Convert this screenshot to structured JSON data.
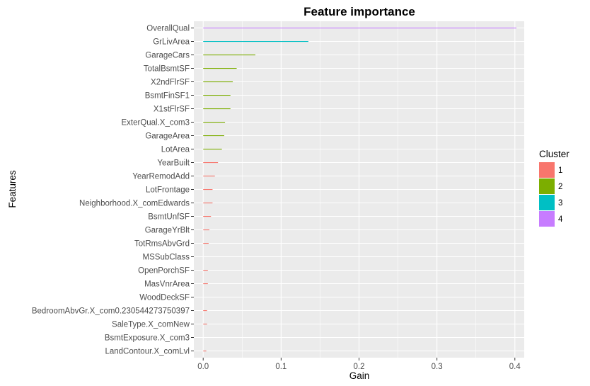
{
  "chart_data": {
    "type": "bar",
    "orientation": "horizontal",
    "title": "Feature importance",
    "xlabel": "Gain",
    "ylabel": "Features",
    "xlim": [
      -0.012,
      0.412
    ],
    "xticks": [
      "0.0",
      "0.1",
      "0.2",
      "0.3",
      "0.4"
    ],
    "xtick_values": [
      0.0,
      0.1,
      0.2,
      0.3,
      0.4
    ],
    "grid": true,
    "legend": {
      "title": "Cluster",
      "placement": "right",
      "entries": [
        {
          "label": "1",
          "color": "#F8766D"
        },
        {
          "label": "2",
          "color": "#7CAE00"
        },
        {
          "label": "3",
          "color": "#00BFC4"
        },
        {
          "label": "4",
          "color": "#C77CFF"
        }
      ]
    },
    "categories": [
      "OverallQual",
      "GrLivArea",
      "GarageCars",
      "TotalBsmtSF",
      "X2ndFlrSF",
      "BsmtFinSF1",
      "X1stFlrSF",
      "ExterQual.X_com3",
      "GarageArea",
      "LotArea",
      "YearBuilt",
      "YearRemodAdd",
      "LotFrontage",
      "Neighborhood.X_comEdwards",
      "BsmtUnfSF",
      "GarageYrBlt",
      "TotRmsAbvGrd",
      "MSSubClass",
      "OpenPorchSF",
      "MasVnrArea",
      "WoodDeckSF",
      "BedroomAbvGr.X_com0.230544273750397",
      "SaleType.X_comNew",
      "BsmtExposure.X_com3",
      "LandContour.X_comLvl"
    ],
    "values": [
      0.402,
      0.135,
      0.067,
      0.043,
      0.038,
      0.035,
      0.035,
      0.028,
      0.027,
      0.024,
      0.019,
      0.015,
      0.012,
      0.012,
      0.01,
      0.008,
      0.007,
      0.0,
      0.006,
      0.006,
      0.0,
      0.005,
      0.005,
      0.0,
      0.004
    ],
    "clusters": [
      4,
      3,
      2,
      2,
      2,
      2,
      2,
      2,
      2,
      2,
      1,
      1,
      1,
      1,
      1,
      1,
      1,
      1,
      1,
      1,
      1,
      1,
      1,
      1,
      1
    ]
  },
  "colors": {
    "panel_background": "#EBEBEB",
    "grid_line": "#FFFFFF"
  }
}
